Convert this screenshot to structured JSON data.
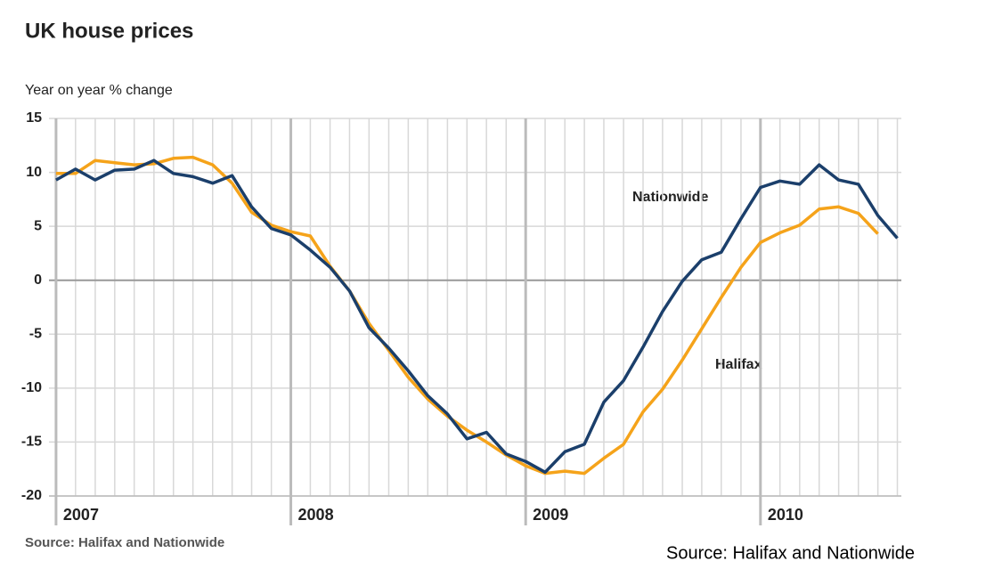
{
  "chart_data": {
    "type": "line",
    "title": "UK house prices",
    "subtitle": "Year on year % change",
    "source": "Source: Halifax and Nationwide",
    "caption": "Source: Halifax and Nationwide",
    "annotations": [
      "Nationwide",
      "Halifax"
    ],
    "x": [
      2007,
      2007.083,
      2007.167,
      2007.25,
      2007.333,
      2007.417,
      2007.5,
      2007.583,
      2007.667,
      2007.75,
      2007.833,
      2007.917,
      2008,
      2008.083,
      2008.167,
      2008.25,
      2008.333,
      2008.417,
      2008.5,
      2008.583,
      2008.667,
      2008.75,
      2008.833,
      2008.917,
      2009,
      2009.083,
      2009.167,
      2009.25,
      2009.333,
      2009.417,
      2009.5,
      2009.583,
      2009.667,
      2009.75,
      2009.833,
      2009.917,
      2010,
      2010.083,
      2010.167,
      2010.25,
      2010.333,
      2010.417,
      2010.5,
      2010.583
    ],
    "series": [
      {
        "name": "Nationwide",
        "color": "#1b3f6b",
        "values": [
          9.3,
          10.3,
          9.3,
          10.2,
          10.3,
          11.1,
          9.9,
          9.6,
          9.0,
          9.7,
          6.8,
          4.8,
          4.2,
          2.8,
          1.2,
          -1.0,
          -4.4,
          -6.3,
          -8.4,
          -10.7,
          -12.4,
          -14.7,
          -14.1,
          -16.1,
          -16.8,
          -17.8,
          -15.9,
          -15.2,
          -11.3,
          -9.3,
          -6.2,
          -2.9,
          -0.1,
          1.9,
          2.6,
          5.7,
          8.6,
          9.2,
          8.9,
          10.7,
          9.3,
          8.9,
          6.0,
          3.9
        ]
      },
      {
        "name": "Halifax",
        "color": "#f5a31a",
        "values": [
          9.9,
          9.9,
          11.1,
          10.9,
          10.7,
          10.8,
          11.3,
          11.4,
          10.7,
          9.0,
          6.3,
          5.1,
          4.5,
          4.1,
          1.3,
          -1.0,
          -4.0,
          -6.5,
          -9.0,
          -11.0,
          -12.6,
          -13.9,
          -15.0,
          -16.2,
          -17.2,
          -17.9,
          -17.7,
          -17.9,
          -16.5,
          -15.2,
          -12.2,
          -10.1,
          -7.4,
          -4.5,
          -1.6,
          1.2,
          3.5,
          4.4,
          5.1,
          6.6,
          6.8,
          6.2,
          4.3,
          null
        ]
      }
    ],
    "xlim": [
      2006.97,
      2010.6
    ],
    "xticks": [
      2007,
      2008,
      2009,
      2010
    ],
    "ylim": [
      -20,
      15
    ],
    "yticks": [
      -20,
      -15,
      -10,
      -5,
      0,
      5,
      10,
      15
    ],
    "grid": true
  }
}
